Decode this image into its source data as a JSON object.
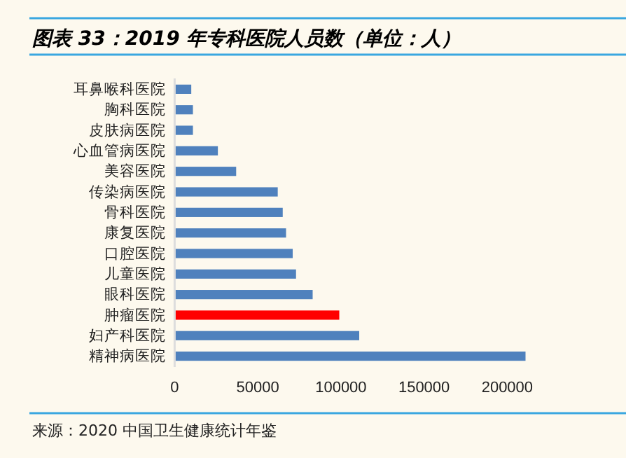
{
  "chart_data": {
    "type": "bar",
    "orientation": "horizontal",
    "title": "图表 33：2019 年专科医院人员数（单位：人）",
    "categories": [
      "耳鼻喉科医院",
      "胸科医院",
      "皮肤病医院",
      "心血管病医院",
      "美容医院",
      "传染病医院",
      "骨科医院",
      "康复医院",
      "口腔医院",
      "儿童医院",
      "眼科医院",
      "肿瘤医院",
      "妇产科医院",
      "精神病医院"
    ],
    "values": [
      10000,
      11000,
      11000,
      26000,
      37000,
      62000,
      65000,
      67000,
      71000,
      73000,
      83000,
      99000,
      111000,
      211000
    ],
    "colors": [
      "#4f81bd",
      "#4f81bd",
      "#4f81bd",
      "#4f81bd",
      "#4f81bd",
      "#4f81bd",
      "#4f81bd",
      "#4f81bd",
      "#4f81bd",
      "#4f81bd",
      "#4f81bd",
      "#ff0000",
      "#4f81bd",
      "#4f81bd"
    ],
    "xlim": [
      0,
      215000
    ],
    "xticks": [
      0,
      50000,
      100000,
      150000,
      200000
    ],
    "grid": false,
    "annotations": [
      "来源：2020 中国卫生健康统计年鉴"
    ]
  }
}
